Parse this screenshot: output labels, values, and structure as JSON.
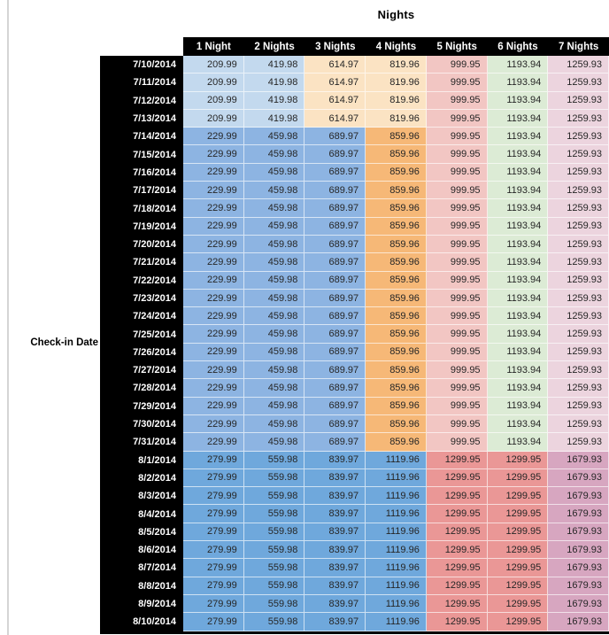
{
  "chart_data": {
    "type": "table",
    "title": "Nights",
    "row_label": "Check-in Date",
    "columns": [
      "1 Night",
      "2 Nights",
      "3 Nights",
      "4 Nights",
      "5 Nights",
      "6 Nights",
      "7 Nights"
    ],
    "palette": {
      "lightBlue": "#C3D9EE",
      "midBlue": "#8DB4E2",
      "darkBlue": "#6FA8DC",
      "lightOrange": "#FBE3C3",
      "midOrange": "#F6B877",
      "lightRed": "#F2C6C3",
      "red": "#EA9796",
      "lightGreen": "#DCEBD5",
      "lightMagenta": "#ECD4DE",
      "mauve": "#D7A6C0"
    },
    "bands": {
      "early": [
        "lightBlue",
        "lightBlue",
        "lightOrange",
        "lightOrange",
        "lightRed",
        "lightGreen",
        "lightMagenta"
      ],
      "mid": [
        "midBlue",
        "midBlue",
        "midBlue",
        "midOrange",
        "lightRed",
        "lightGreen",
        "lightMagenta"
      ],
      "aug": [
        "darkBlue",
        "darkBlue",
        "darkBlue",
        "darkBlue",
        "red",
        "red",
        "mauve"
      ]
    },
    "rows": [
      {
        "date": "7/10/2014",
        "band": "early",
        "values": [
          "209.99",
          "419.98",
          "614.97",
          "819.96",
          "999.95",
          "1193.94",
          "1259.93"
        ]
      },
      {
        "date": "7/11/2014",
        "band": "early",
        "values": [
          "209.99",
          "419.98",
          "614.97",
          "819.96",
          "999.95",
          "1193.94",
          "1259.93"
        ]
      },
      {
        "date": "7/12/2014",
        "band": "early",
        "values": [
          "209.99",
          "419.98",
          "614.97",
          "819.96",
          "999.95",
          "1193.94",
          "1259.93"
        ]
      },
      {
        "date": "7/13/2014",
        "band": "early",
        "values": [
          "209.99",
          "419.98",
          "614.97",
          "819.96",
          "999.95",
          "1193.94",
          "1259.93"
        ]
      },
      {
        "date": "7/14/2014",
        "band": "mid",
        "values": [
          "229.99",
          "459.98",
          "689.97",
          "859.96",
          "999.95",
          "1193.94",
          "1259.93"
        ]
      },
      {
        "date": "7/15/2014",
        "band": "mid",
        "values": [
          "229.99",
          "459.98",
          "689.97",
          "859.96",
          "999.95",
          "1193.94",
          "1259.93"
        ]
      },
      {
        "date": "7/16/2014",
        "band": "mid",
        "values": [
          "229.99",
          "459.98",
          "689.97",
          "859.96",
          "999.95",
          "1193.94",
          "1259.93"
        ]
      },
      {
        "date": "7/17/2014",
        "band": "mid",
        "values": [
          "229.99",
          "459.98",
          "689.97",
          "859.96",
          "999.95",
          "1193.94",
          "1259.93"
        ]
      },
      {
        "date": "7/18/2014",
        "band": "mid",
        "values": [
          "229.99",
          "459.98",
          "689.97",
          "859.96",
          "999.95",
          "1193.94",
          "1259.93"
        ]
      },
      {
        "date": "7/19/2014",
        "band": "mid",
        "values": [
          "229.99",
          "459.98",
          "689.97",
          "859.96",
          "999.95",
          "1193.94",
          "1259.93"
        ]
      },
      {
        "date": "7/20/2014",
        "band": "mid",
        "values": [
          "229.99",
          "459.98",
          "689.97",
          "859.96",
          "999.95",
          "1193.94",
          "1259.93"
        ]
      },
      {
        "date": "7/21/2014",
        "band": "mid",
        "values": [
          "229.99",
          "459.98",
          "689.97",
          "859.96",
          "999.95",
          "1193.94",
          "1259.93"
        ]
      },
      {
        "date": "7/22/2014",
        "band": "mid",
        "values": [
          "229.99",
          "459.98",
          "689.97",
          "859.96",
          "999.95",
          "1193.94",
          "1259.93"
        ]
      },
      {
        "date": "7/23/2014",
        "band": "mid",
        "values": [
          "229.99",
          "459.98",
          "689.97",
          "859.96",
          "999.95",
          "1193.94",
          "1259.93"
        ]
      },
      {
        "date": "7/24/2014",
        "band": "mid",
        "values": [
          "229.99",
          "459.98",
          "689.97",
          "859.96",
          "999.95",
          "1193.94",
          "1259.93"
        ]
      },
      {
        "date": "7/25/2014",
        "band": "mid",
        "values": [
          "229.99",
          "459.98",
          "689.97",
          "859.96",
          "999.95",
          "1193.94",
          "1259.93"
        ]
      },
      {
        "date": "7/26/2014",
        "band": "mid",
        "values": [
          "229.99",
          "459.98",
          "689.97",
          "859.96",
          "999.95",
          "1193.94",
          "1259.93"
        ]
      },
      {
        "date": "7/27/2014",
        "band": "mid",
        "values": [
          "229.99",
          "459.98",
          "689.97",
          "859.96",
          "999.95",
          "1193.94",
          "1259.93"
        ]
      },
      {
        "date": "7/28/2014",
        "band": "mid",
        "values": [
          "229.99",
          "459.98",
          "689.97",
          "859.96",
          "999.95",
          "1193.94",
          "1259.93"
        ]
      },
      {
        "date": "7/29/2014",
        "band": "mid",
        "values": [
          "229.99",
          "459.98",
          "689.97",
          "859.96",
          "999.95",
          "1193.94",
          "1259.93"
        ]
      },
      {
        "date": "7/30/2014",
        "band": "mid",
        "values": [
          "229.99",
          "459.98",
          "689.97",
          "859.96",
          "999.95",
          "1193.94",
          "1259.93"
        ]
      },
      {
        "date": "7/31/2014",
        "band": "mid",
        "values": [
          "229.99",
          "459.98",
          "689.97",
          "859.96",
          "999.95",
          "1193.94",
          "1259.93"
        ]
      },
      {
        "date": "8/1/2014",
        "band": "aug",
        "values": [
          "279.99",
          "559.98",
          "839.97",
          "1119.96",
          "1299.95",
          "1299.95",
          "1679.93"
        ]
      },
      {
        "date": "8/2/2014",
        "band": "aug",
        "values": [
          "279.99",
          "559.98",
          "839.97",
          "1119.96",
          "1299.95",
          "1299.95",
          "1679.93"
        ]
      },
      {
        "date": "8/3/2014",
        "band": "aug",
        "values": [
          "279.99",
          "559.98",
          "839.97",
          "1119.96",
          "1299.95",
          "1299.95",
          "1679.93"
        ]
      },
      {
        "date": "8/4/2014",
        "band": "aug",
        "values": [
          "279.99",
          "559.98",
          "839.97",
          "1119.96",
          "1299.95",
          "1299.95",
          "1679.93"
        ]
      },
      {
        "date": "8/5/2014",
        "band": "aug",
        "values": [
          "279.99",
          "559.98",
          "839.97",
          "1119.96",
          "1299.95",
          "1299.95",
          "1679.93"
        ]
      },
      {
        "date": "8/6/2014",
        "band": "aug",
        "values": [
          "279.99",
          "559.98",
          "839.97",
          "1119.96",
          "1299.95",
          "1299.95",
          "1679.93"
        ]
      },
      {
        "date": "8/7/2014",
        "band": "aug",
        "values": [
          "279.99",
          "559.98",
          "839.97",
          "1119.96",
          "1299.95",
          "1299.95",
          "1679.93"
        ]
      },
      {
        "date": "8/8/2014",
        "band": "aug",
        "values": [
          "279.99",
          "559.98",
          "839.97",
          "1119.96",
          "1299.95",
          "1299.95",
          "1679.93"
        ]
      },
      {
        "date": "8/9/2014",
        "band": "aug",
        "values": [
          "279.99",
          "559.98",
          "839.97",
          "1119.96",
          "1299.95",
          "1299.95",
          "1679.93"
        ]
      },
      {
        "date": "8/10/2014",
        "band": "aug",
        "values": [
          "279.99",
          "559.98",
          "839.97",
          "1119.96",
          "1299.95",
          "1299.95",
          "1679.93"
        ]
      }
    ]
  }
}
